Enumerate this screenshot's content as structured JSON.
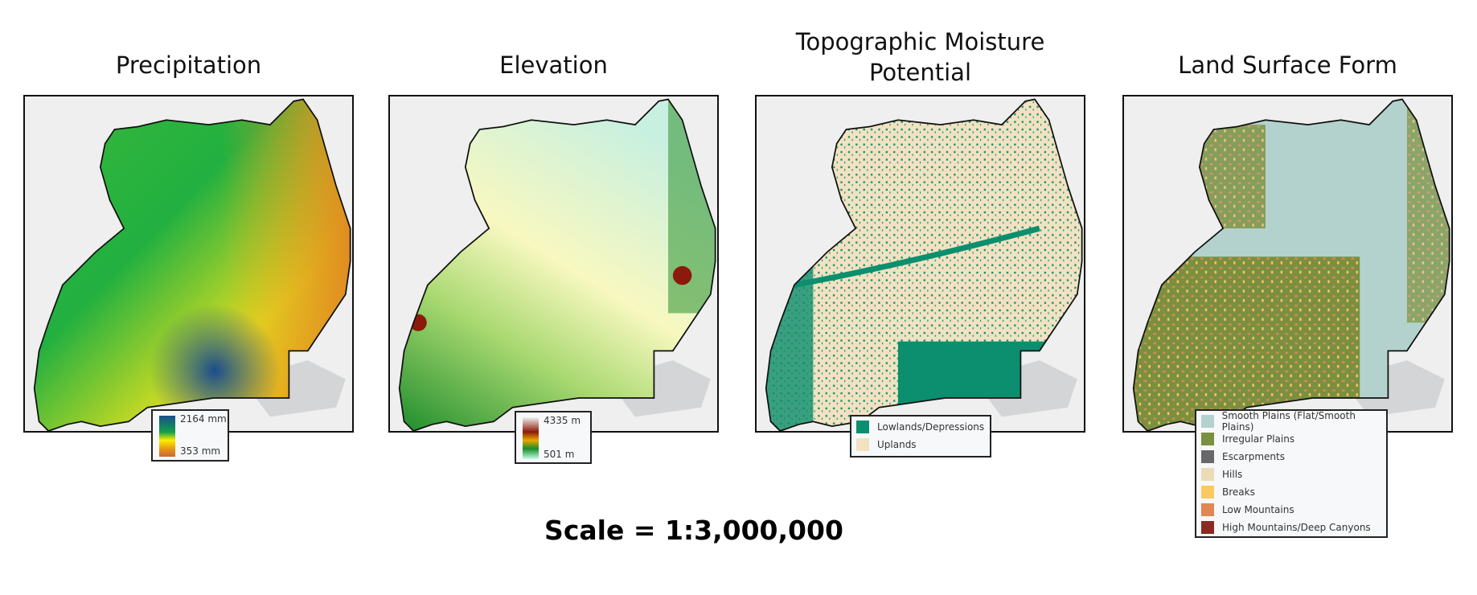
{
  "panels": [
    {
      "title": "Precipitation",
      "legend": {
        "type": "ramp",
        "max": "2164 mm",
        "min": "353 mm",
        "colors": [
          "#1a4e8c",
          "#12a04a",
          "#ffee00",
          "#e89a10",
          "#c46a3a"
        ]
      }
    },
    {
      "title": "Elevation",
      "legend": {
        "type": "ramp",
        "max": "4335 m",
        "min": "501 m",
        "colors": [
          "#f0f0f0",
          "#8b1a0c",
          "#e8a800",
          "#1a8a2a",
          "#c8ffe8"
        ]
      }
    },
    {
      "title_line1": "Topographic Moisture",
      "title_line2": "Potential",
      "legend": {
        "type": "classes",
        "items": [
          {
            "label": "Lowlands/Depressions",
            "color": "#0b8f6e"
          },
          {
            "label": "Uplands",
            "color": "#f2e2c2"
          }
        ]
      }
    },
    {
      "title": "Land Surface Form",
      "legend": {
        "type": "classes",
        "items": [
          {
            "label": "Smooth Plains (Flat/Smooth Plains)",
            "color": "#b4d2cd"
          },
          {
            "label": "Irregular Plains",
            "color": "#7a9040"
          },
          {
            "label": "Escarpments",
            "color": "#68686a"
          },
          {
            "label": "Hills",
            "color": "#eadcb8"
          },
          {
            "label": "Breaks",
            "color": "#fcc860"
          },
          {
            "label": "Low Mountains",
            "color": "#e08850"
          },
          {
            "label": "High Mountains/Deep Canyons",
            "color": "#8a2a22"
          }
        ]
      }
    }
  ],
  "scale": "Scale = 1:3,000,000"
}
